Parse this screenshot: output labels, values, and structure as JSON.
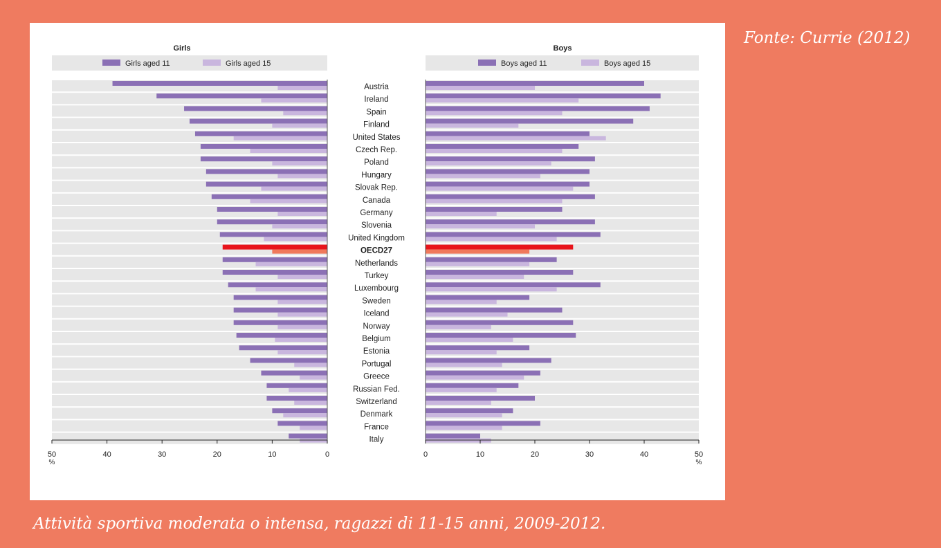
{
  "source": "Fonte: Currie (2012)",
  "caption": "Attività sportiva moderata o intensa, ragazzi di 11-15 anni, 2009-2012.",
  "colors": {
    "background": "#ef7b60",
    "band": "#e7e7e7",
    "age11": "#8b70b5",
    "age15": "#c9b6de",
    "oecd11": "#e8141b",
    "oecd15": "#f0795c"
  },
  "chart_data": {
    "type": "bar",
    "unit_label": "%",
    "xlim": [
      0,
      50
    ],
    "ticks": [
      0,
      10,
      20,
      30,
      40,
      50
    ],
    "highlight": "OECD27",
    "categories": [
      "Austria",
      "Ireland",
      "Spain",
      "Finland",
      "United States",
      "Czech Rep.",
      "Poland",
      "Hungary",
      "Slovak Rep.",
      "Canada",
      "Germany",
      "Slovenia",
      "United Kingdom",
      "OECD27",
      "Netherlands",
      "Turkey",
      "Luxembourg",
      "Sweden",
      "Iceland",
      "Norway",
      "Belgium",
      "Estonia",
      "Portugal",
      "Greece",
      "Russian Fed.",
      "Switzerland",
      "Denmark",
      "France",
      "Italy"
    ],
    "panels": [
      {
        "title": "Girls",
        "series": [
          {
            "name": "Girls aged 11",
            "values": [
              39,
              31,
              26,
              25,
              24,
              23,
              23,
              22,
              22,
              21,
              20,
              20,
              19.5,
              19,
              19,
              19,
              18,
              17,
              17,
              17,
              16.5,
              16,
              14,
              12,
              11,
              11,
              10,
              9,
              7
            ]
          },
          {
            "name": "Girls aged 15",
            "values": [
              9,
              12,
              8,
              10,
              17,
              14,
              10,
              9,
              12,
              14,
              9,
              10,
              11.5,
              10,
              13,
              9,
              13,
              9,
              9,
              9,
              9.5,
              9,
              6,
              5,
              7,
              6,
              8,
              5,
              5
            ]
          }
        ]
      },
      {
        "title": "Boys",
        "series": [
          {
            "name": "Boys aged 11",
            "values": [
              40,
              43,
              41,
              38,
              30,
              28,
              31,
              30,
              30,
              31,
              25,
              31,
              32,
              27,
              24,
              27,
              32,
              19,
              25,
              27,
              27.5,
              19,
              23,
              21,
              17,
              20,
              16,
              21,
              10
            ]
          },
          {
            "name": "Boys aged 15",
            "values": [
              20,
              28,
              25,
              17,
              33,
              25,
              23,
              21,
              27,
              25,
              13,
              20,
              24,
              19,
              19,
              18,
              24,
              13,
              15,
              12,
              16,
              13,
              14,
              18,
              13,
              12,
              14,
              14,
              12
            ]
          }
        ]
      }
    ]
  }
}
